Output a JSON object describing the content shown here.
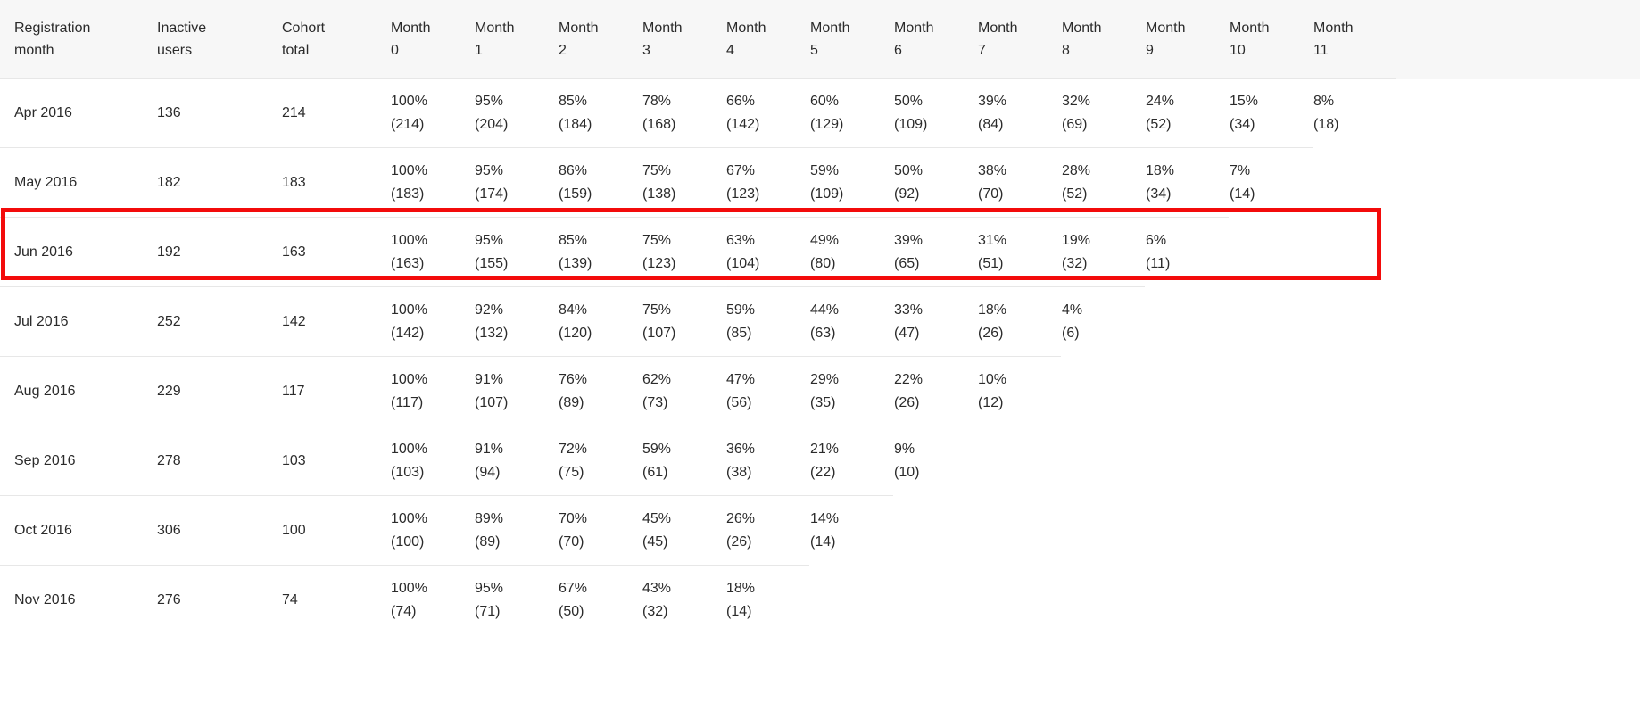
{
  "highlight": {
    "row": "Jun 2016",
    "color": "#f30b0b"
  },
  "chart_data": {
    "type": "table",
    "columns": [
      "Registration month",
      "Inactive users",
      "Cohort total",
      "Month 0",
      "Month 1",
      "Month 2",
      "Month 3",
      "Month 4",
      "Month 5",
      "Month 6",
      "Month 7",
      "Month 8",
      "Month 9",
      "Month 10",
      "Month 11"
    ],
    "rows": [
      {
        "registration_month": "Apr 2016",
        "inactive_users": 136,
        "cohort_total": 214,
        "retention": [
          {
            "pct": "100%",
            "n": 214
          },
          {
            "pct": "95%",
            "n": 204
          },
          {
            "pct": "85%",
            "n": 184
          },
          {
            "pct": "78%",
            "n": 168
          },
          {
            "pct": "66%",
            "n": 142
          },
          {
            "pct": "60%",
            "n": 129
          },
          {
            "pct": "50%",
            "n": 109
          },
          {
            "pct": "39%",
            "n": 84
          },
          {
            "pct": "32%",
            "n": 69
          },
          {
            "pct": "24%",
            "n": 52
          },
          {
            "pct": "15%",
            "n": 34
          },
          {
            "pct": "8%",
            "n": 18
          }
        ]
      },
      {
        "registration_month": "May 2016",
        "inactive_users": 182,
        "cohort_total": 183,
        "retention": [
          {
            "pct": "100%",
            "n": 183
          },
          {
            "pct": "95%",
            "n": 174
          },
          {
            "pct": "86%",
            "n": 159
          },
          {
            "pct": "75%",
            "n": 138
          },
          {
            "pct": "67%",
            "n": 123
          },
          {
            "pct": "59%",
            "n": 109
          },
          {
            "pct": "50%",
            "n": 92
          },
          {
            "pct": "38%",
            "n": 70
          },
          {
            "pct": "28%",
            "n": 52
          },
          {
            "pct": "18%",
            "n": 34
          },
          {
            "pct": "7%",
            "n": 14
          }
        ]
      },
      {
        "registration_month": "Jun 2016",
        "inactive_users": 192,
        "cohort_total": 163,
        "highlighted": true,
        "retention": [
          {
            "pct": "100%",
            "n": 163
          },
          {
            "pct": "95%",
            "n": 155
          },
          {
            "pct": "85%",
            "n": 139
          },
          {
            "pct": "75%",
            "n": 123
          },
          {
            "pct": "63%",
            "n": 104
          },
          {
            "pct": "49%",
            "n": 80
          },
          {
            "pct": "39%",
            "n": 65
          },
          {
            "pct": "31%",
            "n": 51
          },
          {
            "pct": "19%",
            "n": 32
          },
          {
            "pct": "6%",
            "n": 11
          }
        ]
      },
      {
        "registration_month": "Jul 2016",
        "inactive_users": 252,
        "cohort_total": 142,
        "retention": [
          {
            "pct": "100%",
            "n": 142
          },
          {
            "pct": "92%",
            "n": 132
          },
          {
            "pct": "84%",
            "n": 120
          },
          {
            "pct": "75%",
            "n": 107
          },
          {
            "pct": "59%",
            "n": 85
          },
          {
            "pct": "44%",
            "n": 63
          },
          {
            "pct": "33%",
            "n": 47
          },
          {
            "pct": "18%",
            "n": 26
          },
          {
            "pct": "4%",
            "n": 6
          }
        ]
      },
      {
        "registration_month": "Aug 2016",
        "inactive_users": 229,
        "cohort_total": 117,
        "retention": [
          {
            "pct": "100%",
            "n": 117
          },
          {
            "pct": "91%",
            "n": 107
          },
          {
            "pct": "76%",
            "n": 89
          },
          {
            "pct": "62%",
            "n": 73
          },
          {
            "pct": "47%",
            "n": 56
          },
          {
            "pct": "29%",
            "n": 35
          },
          {
            "pct": "22%",
            "n": 26
          },
          {
            "pct": "10%",
            "n": 12
          }
        ]
      },
      {
        "registration_month": "Sep 2016",
        "inactive_users": 278,
        "cohort_total": 103,
        "retention": [
          {
            "pct": "100%",
            "n": 103
          },
          {
            "pct": "91%",
            "n": 94
          },
          {
            "pct": "72%",
            "n": 75
          },
          {
            "pct": "59%",
            "n": 61
          },
          {
            "pct": "36%",
            "n": 38
          },
          {
            "pct": "21%",
            "n": 22
          },
          {
            "pct": "9%",
            "n": 10
          }
        ]
      },
      {
        "registration_month": "Oct 2016",
        "inactive_users": 306,
        "cohort_total": 100,
        "retention": [
          {
            "pct": "100%",
            "n": 100
          },
          {
            "pct": "89%",
            "n": 89
          },
          {
            "pct": "70%",
            "n": 70
          },
          {
            "pct": "45%",
            "n": 45
          },
          {
            "pct": "26%",
            "n": 26
          },
          {
            "pct": "14%",
            "n": 14
          }
        ]
      },
      {
        "registration_month": "Nov 2016",
        "inactive_users": 276,
        "cohort_total": 74,
        "retention": [
          {
            "pct": "100%",
            "n": 74
          },
          {
            "pct": "95%",
            "n": 71
          },
          {
            "pct": "67%",
            "n": 50
          },
          {
            "pct": "43%",
            "n": 32
          },
          {
            "pct": "18%",
            "n": 14
          }
        ]
      }
    ]
  }
}
